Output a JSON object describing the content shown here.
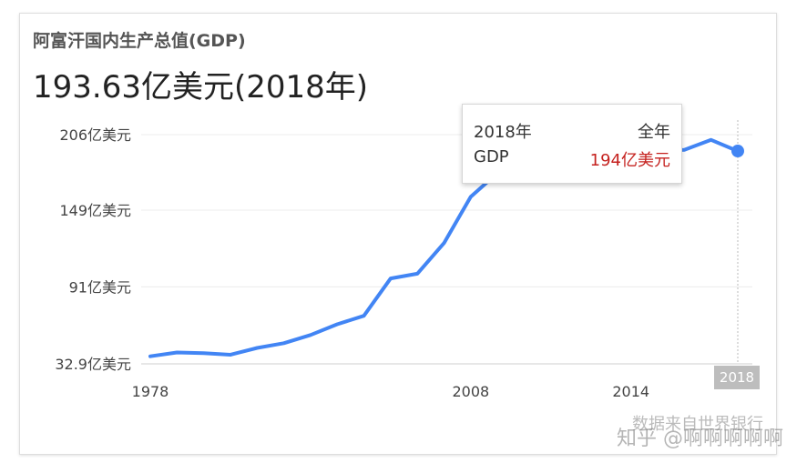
{
  "header": {
    "title": "阿富汗国内生产总值(GDP)",
    "value": "193.63亿美元(2018年)"
  },
  "tooltip": {
    "year": "2018年",
    "period": "全年",
    "metric": "GDP",
    "value": "194亿美元"
  },
  "watermark": {
    "source": "数据来自世界银行",
    "site": "知乎 @啊啊啊啊啊"
  },
  "colors": {
    "line": "#4285f4",
    "grid": "#ececec",
    "tooltip_value": "#c5221f",
    "highlight_label_bg": "#bdbdbd"
  },
  "chart_data": {
    "type": "line",
    "title": "阿富汗国内生产总值(GDP)",
    "xlabel": "",
    "ylabel": "",
    "yticks": [
      {
        "value": 32.9,
        "label": "32.9亿美元"
      },
      {
        "value": 91,
        "label": "91亿美元"
      },
      {
        "value": 149,
        "label": "149亿美元"
      },
      {
        "value": 206,
        "label": "206亿美元"
      }
    ],
    "xticks": [
      {
        "value": 1978,
        "label": "1978"
      },
      {
        "value": 2008,
        "label": "2008"
      },
      {
        "value": 2014,
        "label": "2014"
      }
    ],
    "highlight": {
      "x": 2018,
      "label": "2018"
    },
    "ylim": [
      32.9,
      206
    ],
    "xlim": [
      1978,
      2018
    ],
    "grid": true,
    "legend": "none",
    "series": [
      {
        "values": [
          {
            "x": 1978,
            "y": 38.6
          },
          {
            "x": 1979,
            "y": 41.5
          },
          {
            "x": 1980,
            "y": 41.0
          },
          {
            "x": 1981,
            "y": 39.8
          },
          {
            "x": 2000,
            "y": 44.9
          },
          {
            "x": 2001,
            "y": 48.5
          },
          {
            "x": 2002,
            "y": 54.7
          },
          {
            "x": 2003,
            "y": 62.8
          },
          {
            "x": 2004,
            "y": 69.2
          },
          {
            "x": 2005,
            "y": 97.4
          },
          {
            "x": 2006,
            "y": 101.0
          },
          {
            "x": 2007,
            "y": 124.1
          },
          {
            "x": 2008,
            "y": 159.0
          },
          {
            "x": 2009,
            "y": 177.0
          },
          {
            "x": 2010,
            "y": 178.0
          },
          {
            "x": 2011,
            "y": 189.0
          },
          {
            "x": 2012,
            "y": 200.1
          },
          {
            "x": 2013,
            "y": 200.6
          },
          {
            "x": 2014,
            "y": 201.1
          },
          {
            "x": 2015,
            "y": 193.5
          },
          {
            "x": 2016,
            "y": 194.5
          },
          {
            "x": 2017,
            "y": 202.0
          },
          {
            "x": 2018,
            "y": 193.6
          }
        ]
      }
    ]
  }
}
